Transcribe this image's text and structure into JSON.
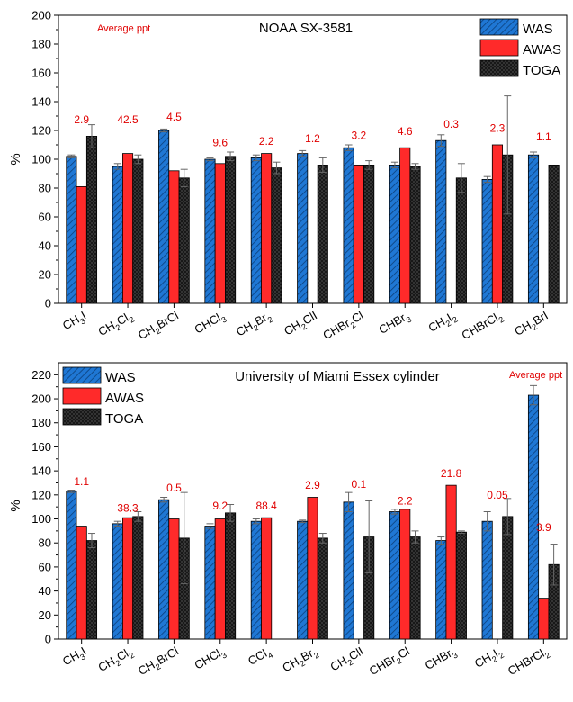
{
  "chart_data": [
    {
      "type": "bar",
      "title": "NOAA SX-3581",
      "annotation_title": "Average ppt",
      "ylabel": "%",
      "ylim": [
        0,
        200
      ],
      "yticks": [
        "0",
        "20",
        "40",
        "60",
        "80",
        "100",
        "120",
        "140",
        "160",
        "180",
        "200"
      ],
      "legend_position": "top-right",
      "categories": [
        {
          "main": "CH",
          "subs": [
            "3"
          ],
          "tail": "I"
        },
        {
          "main": "CH",
          "subs": [
            "2"
          ],
          "mid": "Cl",
          "subs2": [
            "2"
          ]
        },
        {
          "main": "CH",
          "subs": [
            "2"
          ],
          "mid": "BrCl"
        },
        {
          "main": "CHCl",
          "subs": [
            "3"
          ]
        },
        {
          "main": "CH",
          "subs": [
            "2"
          ],
          "mid": "Br",
          "subs2": [
            "2"
          ]
        },
        {
          "main": "CH",
          "subs": [
            "2"
          ],
          "mid": "ClI"
        },
        {
          "main": "CHBr",
          "subs": [
            "2"
          ],
          "mid": "Cl"
        },
        {
          "main": "CHBr",
          "subs": [
            "3"
          ]
        },
        {
          "main": "CH",
          "subs": [
            "2"
          ],
          "mid": "I",
          "subs2": [
            "2"
          ]
        },
        {
          "main": "CHBrCl",
          "subs": [
            "2"
          ]
        },
        {
          "main": "CH",
          "subs": [
            "2"
          ],
          "mid": "BrI"
        }
      ],
      "series": [
        {
          "name": "WAS",
          "color": "#1f77d4",
          "pattern": "hatch",
          "values": [
            102,
            95,
            120,
            100,
            101,
            104,
            108,
            96,
            113,
            86,
            103
          ],
          "errors": [
            1,
            2,
            1,
            1,
            2,
            2,
            2,
            2,
            4,
            2,
            2
          ]
        },
        {
          "name": "AWAS",
          "color": "#ff2a2a",
          "pattern": "solid",
          "values": [
            81,
            104,
            92,
            97,
            104,
            null,
            96,
            108,
            null,
            110,
            null
          ],
          "errors": [
            0,
            0,
            0,
            0,
            0,
            0,
            0,
            0,
            0,
            0,
            0
          ]
        },
        {
          "name": "TOGA",
          "color": "#2b2b2b",
          "pattern": "crosshatch",
          "values": [
            116,
            100,
            87,
            102,
            94,
            96,
            96,
            95,
            87,
            103,
            96
          ],
          "errors": [
            8,
            3,
            6,
            3,
            4,
            5,
            3,
            2,
            10,
            41,
            0
          ]
        }
      ],
      "labels": [
        "2.9",
        "42.5",
        "4.5",
        "9.6",
        "2.2",
        "1.2",
        "3.2",
        "4.6",
        "0.3",
        "2.3",
        "1.1"
      ],
      "label_y": [
        125,
        125,
        127,
        109,
        110,
        112,
        114,
        117,
        122,
        119,
        113
      ]
    },
    {
      "type": "bar",
      "title": "University of Miami Essex cylinder",
      "annotation_title": "Average ppt",
      "ylabel": "%",
      "ylim": [
        0,
        230
      ],
      "yticks": [
        "0",
        "20",
        "40",
        "60",
        "80",
        "100",
        "120",
        "140",
        "160",
        "180",
        "200",
        "220"
      ],
      "legend_position": "top-left",
      "categories": [
        {
          "main": "CH",
          "subs": [
            "3"
          ],
          "tail": "I"
        },
        {
          "main": "CH",
          "subs": [
            "2"
          ],
          "mid": "Cl",
          "subs2": [
            "2"
          ]
        },
        {
          "main": "CH",
          "subs": [
            "2"
          ],
          "mid": "BrCl"
        },
        {
          "main": "CHCl",
          "subs": [
            "3"
          ]
        },
        {
          "main": "CCl",
          "subs": [
            "4"
          ]
        },
        {
          "main": "CH",
          "subs": [
            "2"
          ],
          "mid": "Br",
          "subs2": [
            "2"
          ]
        },
        {
          "main": "CH",
          "subs": [
            "2"
          ],
          "mid": "ClI"
        },
        {
          "main": "CHBr",
          "subs": [
            "2"
          ],
          "mid": "Cl"
        },
        {
          "main": "CHBr",
          "subs": [
            "3"
          ]
        },
        {
          "main": "CH",
          "subs": [
            "2"
          ],
          "mid": "I",
          "subs2": [
            "2"
          ]
        },
        {
          "main": "CHBrCl",
          "subs": [
            "2"
          ]
        }
      ],
      "series": [
        {
          "name": "WAS",
          "color": "#1f77d4",
          "pattern": "hatch",
          "values": [
            123,
            96,
            116,
            94,
            98,
            98,
            114,
            106,
            82,
            98,
            203
          ],
          "errors": [
            1,
            2,
            2,
            2,
            2,
            1,
            8,
            2,
            3,
            8,
            8
          ]
        },
        {
          "name": "AWAS",
          "color": "#ff2a2a",
          "pattern": "solid",
          "values": [
            94,
            101,
            100,
            100,
            101,
            118,
            null,
            108,
            128,
            null,
            34
          ],
          "errors": [
            0,
            0,
            0,
            0,
            0,
            0,
            0,
            0,
            0,
            0,
            0
          ]
        },
        {
          "name": "TOGA",
          "color": "#2b2b2b",
          "pattern": "crosshatch",
          "values": [
            82,
            102,
            84,
            105,
            null,
            84,
            85,
            85,
            89,
            102,
            62
          ],
          "errors": [
            6,
            4,
            38,
            7,
            0,
            4,
            30,
            5,
            1,
            15,
            17
          ]
        }
      ],
      "labels": [
        "1.1",
        "38.3",
        "0.5",
        "9.2",
        "88.4",
        "2.9",
        "0.1",
        "2.2",
        "21.8",
        "0.05",
        "3.9"
      ],
      "label_y": [
        128,
        106,
        123,
        108,
        108,
        125,
        126,
        112,
        135,
        117,
        90
      ]
    }
  ]
}
